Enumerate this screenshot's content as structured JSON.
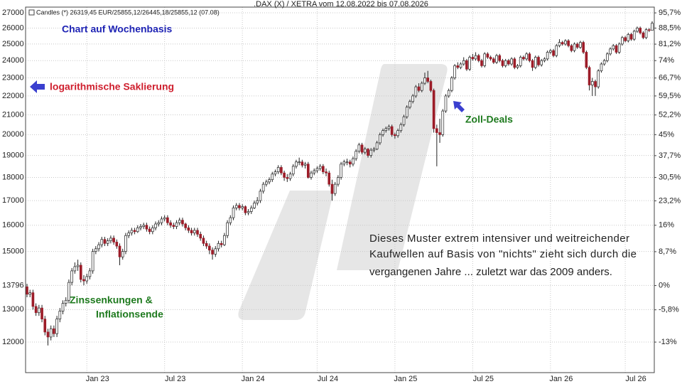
{
  "chart_data": {
    "type": "candlestick",
    "title": ".DAX (X) / XETRA vom 12.08.2022 bis 07.08.2026",
    "legend_text": "Candles (*) 26319,45 EUR/25855,12/26445,18/25855,12 (07.08)",
    "up_color": "#ffffff",
    "down_color": "#9c1c28",
    "log_scale": true,
    "grid": true,
    "open": [
      13750,
      13500,
      13550,
      13100,
      12900,
      13050,
      12700,
      12300,
      12150,
      12400,
      12250,
      12700,
      12950,
      13200,
      13300,
      13900,
      14300,
      14450,
      14500,
      14000,
      13950,
      14100,
      14300,
      15000,
      15100,
      15250,
      15450,
      15300,
      15400,
      15500,
      15350,
      15200,
      14800,
      15000,
      15600,
      15700,
      15800,
      15750,
      15900,
      15950,
      16000,
      15850,
      15750,
      15900,
      16050,
      16100,
      16250,
      16300,
      16100,
      16000,
      15950,
      16100,
      16200,
      16050,
      15900,
      15800,
      15700,
      15800,
      15650,
      15500,
      15300,
      15200,
      15050,
      14900,
      15100,
      15300,
      15250,
      15600,
      16100,
      16300,
      16700,
      16800,
      16700,
      16750,
      16500,
      16550,
      16700,
      16900,
      17000,
      17400,
      17700,
      17800,
      17900,
      18150,
      18250,
      18450,
      18200,
      18000,
      17950,
      18150,
      18500,
      18700,
      18700,
      18550,
      18600,
      18000,
      18200,
      18300,
      18400,
      18500,
      18250,
      18200,
      17700,
      17300,
      17700,
      18000,
      18600,
      18700,
      18700,
      18600,
      18850,
      19200,
      19500,
      19150,
      19300,
      19000,
      19250,
      19300,
      19600,
      20000,
      20200,
      20300,
      20400,
      20000,
      19950,
      20200,
      20500,
      20900,
      21400,
      21700,
      22000,
      22500,
      22300,
      22700,
      23000,
      22800,
      22300,
      20300,
      20100,
      20000,
      21200,
      22000,
      22300,
      23000,
      23700,
      23600,
      23800,
      24000,
      23500,
      24200,
      24100,
      24300,
      24000,
      23700,
      24400,
      24200,
      24100,
      23900,
      24300,
      24000,
      23700,
      24000,
      23800,
      24100,
      23600,
      23700,
      24200,
      24100,
      24400,
      24000,
      23600,
      24200,
      23750,
      24000,
      24100,
      24500,
      24600,
      24300,
      24900,
      25100,
      25000,
      25200,
      24900,
      24600,
      25000,
      24800,
      25100,
      24500,
      23600,
      22600,
      22800,
      22500,
      23400,
      23800,
      24000,
      24400,
      24700,
      24900,
      24500,
      25000,
      25400,
      25200,
      25600,
      25300,
      25800,
      26000,
      25700,
      25400,
      25900,
      25855
    ],
    "high": [
      13850,
      13650,
      13650,
      13200,
      13150,
      13150,
      12800,
      12400,
      12500,
      12500,
      12800,
      13050,
      13300,
      13400,
      14000,
      14400,
      14600,
      14700,
      14600,
      14150,
      14200,
      14400,
      15100,
      15200,
      15350,
      15550,
      15550,
      15500,
      15600,
      15600,
      15450,
      15300,
      15100,
      15700,
      15800,
      15900,
      15900,
      16000,
      16050,
      16100,
      16100,
      15950,
      16000,
      16150,
      16200,
      16350,
      16400,
      16400,
      16200,
      16100,
      16200,
      16300,
      16300,
      16100,
      16000,
      15900,
      15900,
      15900,
      15750,
      15600,
      15400,
      15300,
      15150,
      15200,
      15400,
      15400,
      15700,
      16200,
      16400,
      16800,
      16900,
      16900,
      16850,
      16800,
      16650,
      16800,
      17000,
      17150,
      17500,
      17800,
      17900,
      18000,
      18250,
      18350,
      18550,
      18550,
      18300,
      18150,
      18250,
      18600,
      18800,
      18900,
      18800,
      18700,
      18700,
      18300,
      18400,
      18500,
      18600,
      18600,
      18400,
      18300,
      17900,
      17800,
      18100,
      18700,
      18800,
      18850,
      18800,
      18950,
      19300,
      19600,
      19600,
      19400,
      19350,
      19350,
      19400,
      19700,
      20100,
      20300,
      20400,
      20500,
      20500,
      20100,
      20300,
      20600,
      21000,
      21500,
      21800,
      22100,
      22600,
      22700,
      22800,
      23300,
      23400,
      22900,
      22400,
      20500,
      20800,
      21300,
      22100,
      22400,
      23100,
      23800,
      23900,
      23900,
      24200,
      24100,
      24300,
      24400,
      24500,
      24400,
      24100,
      24500,
      24500,
      24300,
      24200,
      24400,
      24400,
      24100,
      24100,
      24100,
      24200,
      24200,
      23800,
      24300,
      24300,
      24500,
      24500,
      24100,
      24300,
      24300,
      24100,
      24200,
      24600,
      24700,
      24700,
      25000,
      25300,
      25200,
      25300,
      25300,
      25000,
      25100,
      25100,
      25200,
      25200,
      24600,
      23700,
      23000,
      22900,
      23500,
      23900,
      24100,
      24500,
      24800,
      25000,
      25000,
      25100,
      25500,
      25500,
      25700,
      25700,
      25900,
      26100,
      26100,
      25800,
      26000,
      26000,
      26445
    ],
    "low": [
      13400,
      13400,
      13000,
      12800,
      12800,
      12600,
      12200,
      11900,
      12050,
      12150,
      12150,
      12600,
      12850,
      13100,
      13200,
      13800,
      14200,
      14300,
      13900,
      13800,
      13850,
      14000,
      14200,
      14900,
      15000,
      15150,
      15200,
      15200,
      15300,
      15250,
      15100,
      14500,
      14700,
      14900,
      15500,
      15600,
      15650,
      15700,
      15800,
      15850,
      15750,
      15650,
      15650,
      15800,
      15950,
      16000,
      16150,
      16000,
      15900,
      15850,
      15850,
      16000,
      15950,
      15800,
      15700,
      15600,
      15600,
      15550,
      15400,
      15200,
      15100,
      14900,
      14700,
      14800,
      15000,
      15150,
      15200,
      15500,
      16000,
      16200,
      16600,
      16600,
      16600,
      16400,
      16400,
      16450,
      16650,
      16800,
      16900,
      17300,
      17600,
      17700,
      17800,
      18050,
      18150,
      18100,
      17850,
      17800,
      17850,
      18050,
      18400,
      18550,
      18450,
      18400,
      17950,
      17900,
      18100,
      18200,
      18300,
      18150,
      18050,
      17600,
      17000,
      17200,
      17600,
      17900,
      18500,
      18550,
      18450,
      18500,
      18750,
      19100,
      19050,
      19050,
      18900,
      18900,
      19150,
      19250,
      19500,
      19900,
      20100,
      20200,
      19900,
      19800,
      19850,
      20100,
      20400,
      20800,
      21300,
      21600,
      21900,
      22200,
      22200,
      22600,
      22700,
      22200,
      20100,
      18500,
      19600,
      19900,
      21100,
      21900,
      22200,
      22900,
      23500,
      23500,
      23700,
      23400,
      23400,
      24000,
      24000,
      23900,
      23600,
      23600,
      24100,
      24000,
      23800,
      23800,
      23900,
      23600,
      23600,
      23700,
      23700,
      23500,
      23500,
      23600,
      24000,
      24000,
      23900,
      23400,
      23500,
      23650,
      23650,
      23900,
      24000,
      24400,
      24200,
      24200,
      24800,
      24900,
      24900,
      24800,
      24500,
      24500,
      24700,
      24700,
      24400,
      23500,
      22300,
      22000,
      22000,
      22400,
      23300,
      23700,
      23900,
      24300,
      24600,
      24400,
      24400,
      24900,
      25100,
      25100,
      25200,
      25200,
      25700,
      25600,
      25300,
      25300,
      25750,
      25855
    ],
    "close": [
      13500,
      13550,
      13100,
      12900,
      13050,
      12700,
      12300,
      12150,
      12400,
      12250,
      12700,
      12950,
      13200,
      13300,
      13900,
      14300,
      14450,
      14500,
      14000,
      13950,
      14100,
      14300,
      15000,
      15100,
      15250,
      15450,
      15300,
      15400,
      15500,
      15350,
      15200,
      14800,
      15000,
      15600,
      15700,
      15800,
      15750,
      15900,
      15950,
      16000,
      15850,
      15750,
      15900,
      16050,
      16100,
      16250,
      16300,
      16100,
      16000,
      15950,
      16100,
      16200,
      16050,
      15900,
      15800,
      15700,
      15800,
      15650,
      15500,
      15300,
      15200,
      15050,
      14900,
      15100,
      15300,
      15250,
      15600,
      16100,
      16300,
      16700,
      16800,
      16700,
      16750,
      16500,
      16550,
      16700,
      16900,
      17000,
      17400,
      17700,
      17800,
      17900,
      18150,
      18250,
      18450,
      18200,
      18000,
      17950,
      18150,
      18500,
      18700,
      18700,
      18550,
      18600,
      18000,
      18200,
      18300,
      18400,
      18500,
      18250,
      18200,
      17700,
      17300,
      17700,
      18000,
      18600,
      18700,
      18700,
      18600,
      18850,
      19200,
      19500,
      19150,
      19300,
      19000,
      19250,
      19300,
      19600,
      20000,
      20200,
      20300,
      20400,
      20000,
      19950,
      20200,
      20500,
      20900,
      21400,
      21700,
      22000,
      22500,
      22300,
      22700,
      23000,
      22800,
      22300,
      20300,
      20100,
      20000,
      21200,
      22000,
      22300,
      23000,
      23700,
      23600,
      23800,
      24000,
      23500,
      24200,
      24100,
      24300,
      24000,
      23700,
      24400,
      24200,
      24100,
      23900,
      24300,
      24000,
      23700,
      24000,
      23800,
      24100,
      23600,
      23700,
      24200,
      24100,
      24400,
      24000,
      23600,
      24200,
      23750,
      24000,
      24100,
      24500,
      24600,
      24300,
      24900,
      25100,
      25000,
      25200,
      24900,
      24600,
      25000,
      24800,
      25100,
      24500,
      23600,
      22600,
      22800,
      22500,
      23400,
      23800,
      24000,
      24400,
      24700,
      24900,
      24500,
      25000,
      25400,
      25200,
      25600,
      25300,
      25800,
      26000,
      25700,
      25400,
      25900,
      25850,
      26319
    ],
    "ylim": [
      11130,
      27380
    ],
    "yticks": [
      12000,
      13000,
      13796,
      15000,
      16000,
      17000,
      18000,
      19000,
      20000,
      21000,
      22000,
      23000,
      24000,
      25000,
      26000,
      27000
    ],
    "y2lim": [
      -19.3,
      98.5
    ],
    "y2ticks": [
      {
        "value": -13,
        "label": "-13%"
      },
      {
        "value": -5.8,
        "label": "-5,8%"
      },
      {
        "value": 0,
        "label": "0%"
      },
      {
        "value": 8.7,
        "label": "8,7%"
      },
      {
        "value": 16,
        "label": "16%"
      },
      {
        "value": 23.2,
        "label": "23,2%"
      },
      {
        "value": 30.5,
        "label": "30,5%"
      },
      {
        "value": 37.7,
        "label": "37,7%"
      },
      {
        "value": 45,
        "label": "45%"
      },
      {
        "value": 52.2,
        "label": "52,2%"
      },
      {
        "value": 59.5,
        "label": "59,5%"
      },
      {
        "value": 66.7,
        "label": "66,7%"
      },
      {
        "value": 74,
        "label": "74%"
      },
      {
        "value": 81.2,
        "label": "81,2%"
      },
      {
        "value": 88.5,
        "label": "88,5%"
      },
      {
        "value": 95.7,
        "label": "95,7%"
      }
    ],
    "xticks": [
      {
        "value": 20,
        "label": "Jan 23"
      },
      {
        "value": 46,
        "label": "Jul 23"
      },
      {
        "value": 72,
        "label": "Jan 24"
      },
      {
        "value": 97,
        "label": "Jul 24"
      },
      {
        "value": 123,
        "label": "Jan 25"
      },
      {
        "value": 149,
        "label": "Jul 25"
      },
      {
        "value": 175,
        "label": "Jan 26"
      },
      {
        "value": 200,
        "label": "Jul 26"
      }
    ],
    "annotations": {
      "basis": "Chart auf Wochenbasis",
      "log": "logarithmische Saklierung",
      "rates_1": "Zinssenkungen &",
      "rates_2": "Inflationsende",
      "tariffs": "Zoll-Deals",
      "comment": [
        "Dieses Muster extrem intensiver und weitreichender",
        "Kaufwellen auf Basis von \"nichts\" zieht sich durch die",
        "vergangenen Jahre ... zuletzt war das 2009 anders."
      ]
    }
  }
}
